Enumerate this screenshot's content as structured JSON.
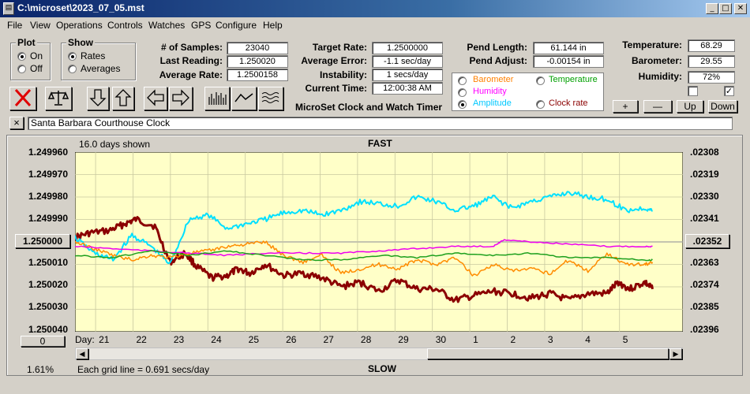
{
  "window": {
    "title": "C:\\microset\\2023_07_05.mst",
    "controls": [
      "_",
      "□",
      "✕"
    ]
  },
  "menu": [
    "File",
    "View",
    "Operations",
    "Controls",
    "Watches",
    "GPS",
    "Configure",
    "Help"
  ],
  "plot_group": {
    "title": "Plot",
    "options": [
      "On",
      "Off"
    ],
    "selected": "On"
  },
  "show_group": {
    "title": "Show",
    "options": [
      "Rates",
      "Averages"
    ],
    "selected": "Rates"
  },
  "stats": {
    "samples_label": "# of Samples:",
    "samples": "23040",
    "last_label": "Last Reading:",
    "last": "1.250020",
    "avg_label": "Average Rate:",
    "avg": "1.2500158",
    "target_label": "Target Rate:",
    "target": "1.2500000",
    "error_label": "Average Error:",
    "error": "-1.1 sec/day",
    "instab_label": "Instability:",
    "instab": "1 secs/day",
    "time_label": "Current Time:",
    "time": "12:00:38 AM",
    "pend_len_label": "Pend Length:",
    "pend_len": "61.144 in",
    "pend_adj_label": "Pend Adjust:",
    "pend_adj": "-0.00154 in"
  },
  "environment": {
    "temp_label": "Temperature:",
    "temp": "68.29",
    "baro_label": "Barometer:",
    "baro": "29.55",
    "hum_label": "Humidity:",
    "hum": "72%",
    "buttons": [
      "+",
      "—",
      "Up",
      "Down"
    ],
    "check1": false,
    "check2": true
  },
  "app_caption": "MicroSet Clock and Watch Timer",
  "overlays": {
    "options": [
      {
        "label": "Barometer",
        "color": "#ff8000"
      },
      {
        "label": "Temperature",
        "color": "#00a000"
      },
      {
        "label": "Humidity",
        "color": "#ff00ff"
      },
      {
        "label": "Amplitude",
        "color": "#00c8ff"
      },
      {
        "label": "Clock rate",
        "color": "#8b0000"
      }
    ],
    "selected": "Amplitude"
  },
  "clock_name": "Santa Barbara Courthouse Clock",
  "clock_close": "×",
  "graph": {
    "days_shown": "16.0 days shown",
    "top_label": "FAST",
    "bottom_label": "SLOW",
    "center_button": "1.250000",
    "right_button": ".02352",
    "zero_button": "0",
    "percent": "1.61%",
    "grid_note": "Each grid line = 0.691 secs/day",
    "day_label": "Day:"
  },
  "chart_data": {
    "type": "line",
    "x_unit": "day",
    "left_axis_ticks": [
      "1.249960",
      "1.249970",
      "1.249980",
      "1.249990",
      "1.250000",
      "1.250010",
      "1.250020",
      "1.250030",
      "1.250040"
    ],
    "right_axis_ticks": [
      ".02308",
      ".02319",
      ".02330",
      ".02341",
      ".02352",
      ".02363",
      ".02374",
      ".02385",
      ".02396"
    ],
    "x_ticks": [
      "21",
      "22",
      "23",
      "24",
      "25",
      "26",
      "27",
      "28",
      "29",
      "30",
      "1",
      "2",
      "3",
      "4",
      "5"
    ],
    "ylim": [
      1.25004,
      1.24996
    ],
    "xlim": [
      0,
      16
    ],
    "series": [
      {
        "name": "Clock rate",
        "color": "#8b0000",
        "stroke": 3,
        "x": [
          0.0,
          0.4,
          0.9,
          1.3,
          1.6,
          2.1,
          2.5,
          2.9,
          3.2,
          3.6,
          4.0,
          4.3,
          4.6,
          5.0,
          5.5,
          6.0,
          6.5,
          7.0,
          7.5,
          8.0,
          8.5,
          9.0,
          9.5,
          10.0,
          10.5,
          11.0,
          11.5,
          12.0,
          12.5,
          13.0,
          13.5,
          14.0,
          14.3,
          14.6,
          15.0,
          15.2
        ],
        "y": [
          1.249998,
          1.249996,
          1.249995,
          1.249992,
          1.24999,
          1.249993,
          1.250009,
          1.250005,
          1.250011,
          1.250016,
          1.250015,
          1.250012,
          1.250014,
          1.25001,
          1.250015,
          1.250014,
          1.250016,
          1.25002,
          1.250018,
          1.250022,
          1.250017,
          1.250021,
          1.250021,
          1.250026,
          1.250024,
          1.250022,
          1.250023,
          1.250025,
          1.250023,
          1.250026,
          1.250023,
          1.250023,
          1.250018,
          1.250021,
          1.250018,
          1.250021
        ]
      },
      {
        "name": "Amplitude",
        "color": "#00e0ff",
        "stroke": 2,
        "x": [
          0.0,
          0.5,
          1.0,
          1.5,
          2.0,
          2.5,
          3.0,
          3.5,
          4.0,
          4.5,
          5.0,
          5.5,
          6.0,
          6.5,
          7.0,
          7.5,
          8.0,
          8.5,
          9.0,
          9.5,
          10.0,
          10.5,
          11.0,
          11.5,
          12.0,
          12.5,
          13.0,
          13.5,
          14.0,
          14.5,
          15.0,
          15.2
        ],
        "y": [
          1.249998,
          1.250005,
          1.250008,
          1.249997,
          1.250002,
          1.25001,
          1.24999,
          1.249988,
          1.249994,
          1.249992,
          1.24999,
          1.249987,
          1.249986,
          1.249988,
          1.249986,
          1.249982,
          1.249983,
          1.249984,
          1.24998,
          1.249982,
          1.249986,
          1.249984,
          1.24998,
          1.249985,
          1.249982,
          1.24998,
          1.249978,
          1.24998,
          1.249981,
          1.249986,
          1.249985,
          1.249986
        ]
      },
      {
        "name": "Barometer",
        "color": "#ff8c00",
        "stroke": 1.5,
        "x": [
          0.0,
          0.5,
          1.0,
          1.5,
          2.0,
          2.5,
          3.0,
          3.5,
          4.0,
          4.5,
          5.0,
          5.5,
          6.0,
          6.5,
          7.0,
          7.5,
          8.0,
          8.5,
          9.0,
          9.5,
          10.0,
          10.5,
          11.0,
          11.5,
          12.0,
          12.5,
          13.0,
          13.5,
          14.0,
          14.5,
          15.0,
          15.2
        ],
        "y": [
          1.25,
          1.250003,
          1.250006,
          1.250008,
          1.250006,
          1.250007,
          1.250005,
          1.250004,
          1.250002,
          1.250001,
          1.25,
          1.250006,
          1.250009,
          1.250006,
          1.250014,
          1.250012,
          1.25001,
          1.250012,
          1.250008,
          1.25001,
          1.250007,
          1.250015,
          1.25001,
          1.250013,
          1.250012,
          1.250014,
          1.250008,
          1.250013,
          1.250005,
          1.25001,
          1.25001,
          1.250009
        ]
      },
      {
        "name": "Humidity",
        "color": "#ee00ee",
        "stroke": 1.5,
        "x": [
          0.0,
          1.0,
          2.0,
          3.0,
          4.0,
          5.0,
          6.0,
          7.0,
          8.0,
          9.0,
          10.0,
          11.0,
          11.3,
          12.0,
          13.0,
          14.0,
          15.0,
          15.2
        ],
        "y": [
          1.250002,
          1.250003,
          1.250004,
          1.250005,
          1.250006,
          1.250005,
          1.250005,
          1.250005,
          1.250004,
          1.250003,
          1.250002,
          1.250002,
          1.249999,
          1.25,
          1.250001,
          1.250002,
          1.250002,
          1.250002
        ]
      },
      {
        "name": "Temperature",
        "color": "#1ea01e",
        "stroke": 1.5,
        "x": [
          0.0,
          1.0,
          2.0,
          3.0,
          4.0,
          5.0,
          6.0,
          7.0,
          8.0,
          9.0,
          10.0,
          11.0,
          12.0,
          13.0,
          14.0,
          15.0,
          15.2
        ],
        "y": [
          1.250006,
          1.250007,
          1.250004,
          1.250006,
          1.250004,
          1.250006,
          1.250008,
          1.250008,
          1.250006,
          1.250007,
          1.250005,
          1.250006,
          1.250005,
          1.250007,
          1.250007,
          1.250008,
          1.250008
        ]
      }
    ]
  }
}
